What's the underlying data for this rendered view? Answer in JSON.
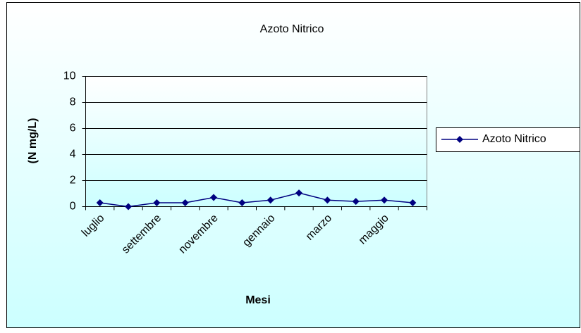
{
  "chart_data": {
    "type": "line",
    "title": "Azoto Nitrico",
    "x_label": "Mesi",
    "y_label": "(N mg/L)",
    "categories": [
      "luglio",
      null,
      "settembre",
      null,
      "novembre",
      null,
      "gennaio",
      null,
      "marzo",
      null,
      "maggio",
      null
    ],
    "series": [
      {
        "name": "Azoto Nitrico",
        "color": "#000080",
        "values": [
          0.3,
          0,
          0.3,
          0.3,
          0.7,
          0.3,
          0.5,
          1.05,
          0.5,
          0.4,
          0.5,
          0.3
        ]
      }
    ],
    "ylim": [
      0,
      10
    ],
    "yticks": [
      0,
      2,
      4,
      6,
      8,
      10
    ],
    "grid": true,
    "legend": "right"
  }
}
